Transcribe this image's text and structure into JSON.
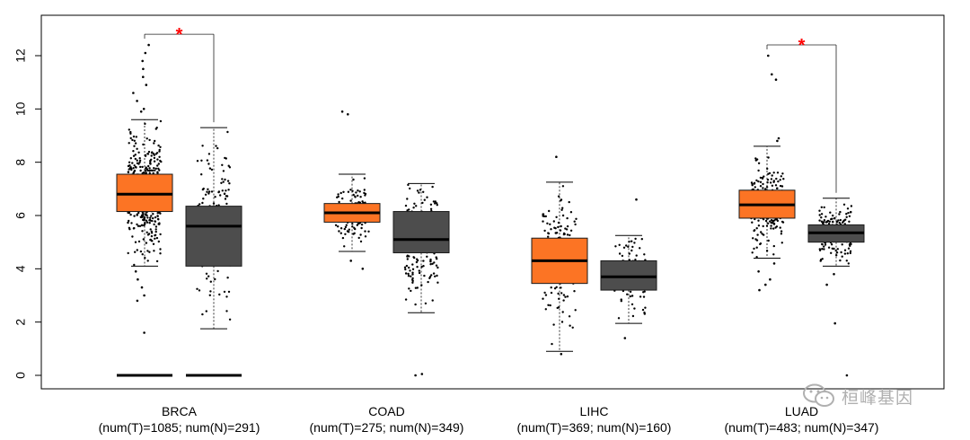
{
  "chart_data": {
    "type": "boxplot",
    "title": "",
    "xlabel": "",
    "ylabel": "",
    "ylim": [
      -0.5,
      13.3
    ],
    "yticks": [
      0,
      2,
      4,
      6,
      8,
      10,
      12
    ],
    "colors": {
      "tumor": "#fc7424",
      "normal": "#4d4d4d",
      "jitter": "#000000",
      "significance": "#ff0000"
    },
    "groups": [
      {
        "name": "BRCA",
        "label": "(num(T)=1085; num(N)=291)",
        "tumor": {
          "whisker_low": 4.1,
          "q1": 6.15,
          "median": 6.8,
          "q3": 7.55,
          "whisker_high": 9.6,
          "zero_bar": true,
          "outliers": [
            12.4,
            12.1,
            11.8,
            11.5,
            11.2,
            10.9,
            10.6,
            10.3,
            10.0,
            9.9,
            3.9,
            3.6,
            3.3,
            3.0,
            2.8,
            1.6
          ]
        },
        "normal": {
          "whisker_low": 1.75,
          "q1": 4.1,
          "median": 5.6,
          "q3": 6.35,
          "whisker_high": 9.3,
          "zero_bar": true,
          "outliers": []
        },
        "significant": true,
        "marker": "*"
      },
      {
        "name": "COAD",
        "label": "(num(T)=275; num(N)=349)",
        "tumor": {
          "whisker_low": 4.65,
          "q1": 5.75,
          "median": 6.1,
          "q3": 6.45,
          "whisker_high": 7.55,
          "zero_bar": false,
          "outliers": [
            9.9,
            9.8,
            4.3,
            4.0
          ]
        },
        "normal": {
          "whisker_low": 2.35,
          "q1": 4.6,
          "median": 5.1,
          "q3": 6.15,
          "whisker_high": 7.2,
          "zero_bar": false,
          "outliers": [
            0.05,
            0.0
          ]
        },
        "significant": false,
        "marker": ""
      },
      {
        "name": "LIHC",
        "label": "(num(T)=369; num(N)=160)",
        "tumor": {
          "whisker_low": 0.9,
          "q1": 3.45,
          "median": 4.3,
          "q3": 5.15,
          "whisker_high": 7.25,
          "zero_bar": false,
          "outliers": [
            8.2,
            0.8
          ]
        },
        "normal": {
          "whisker_low": 1.95,
          "q1": 3.2,
          "median": 3.7,
          "q3": 4.3,
          "whisker_high": 5.25,
          "zero_bar": false,
          "outliers": [
            6.6,
            1.4
          ]
        },
        "significant": false,
        "marker": ""
      },
      {
        "name": "LUAD",
        "label": "(num(T)=483; num(N)=347)",
        "tumor": {
          "whisker_low": 4.4,
          "q1": 5.9,
          "median": 6.4,
          "q3": 6.95,
          "whisker_high": 8.6,
          "zero_bar": false,
          "outliers": [
            12.0,
            11.3,
            11.1,
            8.9,
            8.8,
            4.2,
            3.9,
            3.6,
            3.4,
            3.2
          ]
        },
        "normal": {
          "whisker_low": 4.1,
          "q1": 5.0,
          "median": 5.35,
          "q3": 5.65,
          "whisker_high": 6.65,
          "zero_bar": false,
          "outliers": [
            3.8,
            3.4,
            1.95,
            0.0
          ]
        },
        "significant": true,
        "marker": "*"
      }
    ]
  },
  "watermark": {
    "text": "桓峰基因",
    "icon": "wechat-icon"
  }
}
